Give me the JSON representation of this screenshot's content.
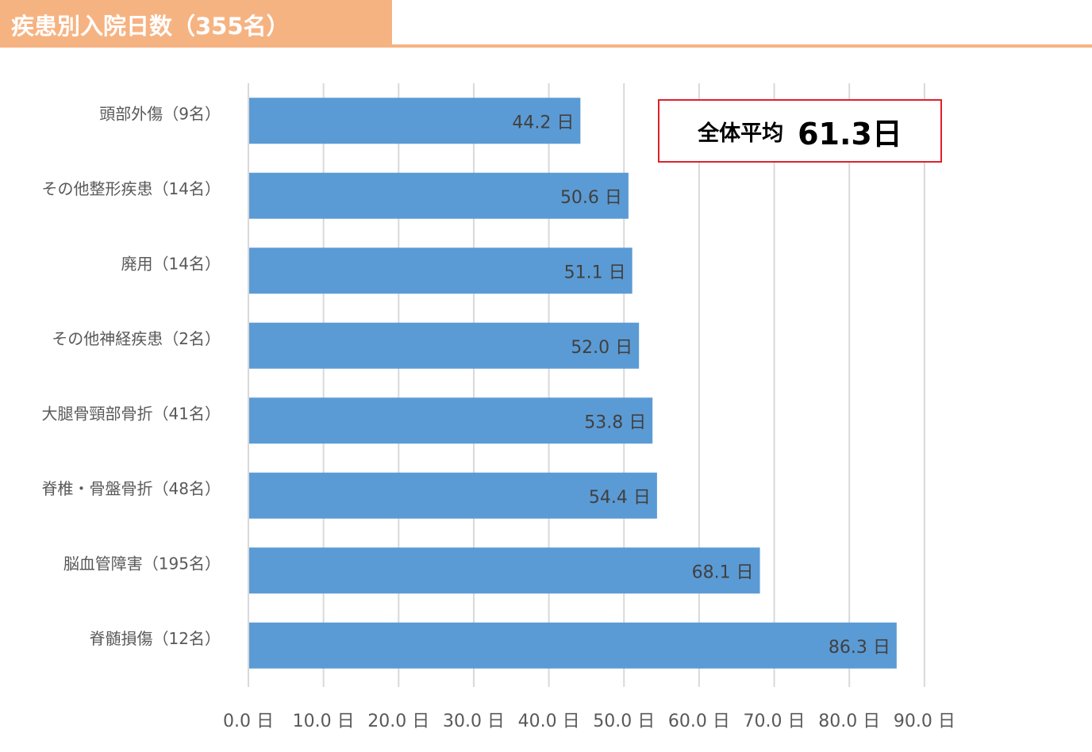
{
  "header": {
    "title": "疾患別入院日数（355名）"
  },
  "average_box": {
    "label": "全体平均",
    "value": "61.3日"
  },
  "colors": {
    "bar": "#5b9bd5",
    "header": "#f6b382",
    "avg_border": "#e0202a",
    "grid": "#d9d9d9"
  },
  "chart_data": {
    "type": "bar",
    "orientation": "horizontal",
    "categories": [
      "頭部外傷（9名）",
      "その他整形疾患（14名）",
      "廃用（14名）",
      "その他神経疾患（2名）",
      "大腿骨頸部骨折（41名）",
      "脊椎・骨盤骨折（48名）",
      "脳血管障害（195名）",
      "脊髄損傷（12名）"
    ],
    "values": [
      44.2,
      50.6,
      51.1,
      52.0,
      53.8,
      54.4,
      68.1,
      86.3
    ],
    "value_labels": [
      "44.2 日",
      "50.6 日",
      "51.1 日",
      "52.0 日",
      "53.8 日",
      "54.4 日",
      "68.1 日",
      "86.3 日"
    ],
    "xlim": [
      0,
      90
    ],
    "ticks": [
      0,
      10,
      20,
      30,
      40,
      50,
      60,
      70,
      80,
      90
    ],
    "tick_labels": [
      "0.0 日",
      "10.0 日",
      "20.0 日",
      "30.0 日",
      "40.0 日",
      "50.0 日",
      "60.0 日",
      "70.0 日",
      "80.0 日",
      "90.0 日"
    ],
    "grid": true,
    "legend": "none"
  }
}
